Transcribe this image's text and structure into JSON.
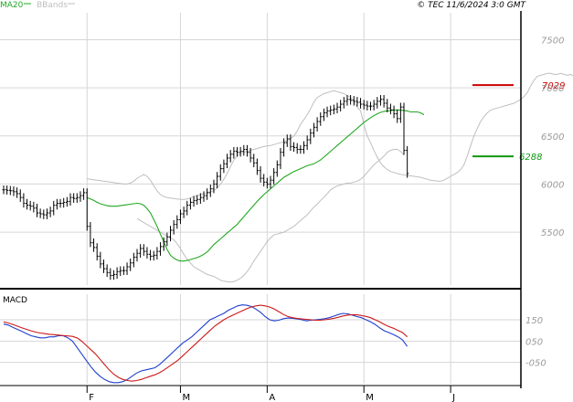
{
  "legend": {
    "ma": "MA20",
    "bb": "BBands"
  },
  "copyright": "© TEC 11/6/2024 3:0 GMT",
  "colors": {
    "price": "#000000",
    "ma": "#22a822",
    "bands": "#bfbfbf",
    "grid": "#d6d6d6",
    "resistance": "#cc0000",
    "support": "#119911",
    "macd": "#1f3fd0",
    "signal": "#cc1a1a",
    "axis_text": "#9a9a9a"
  },
  "chart_data": [
    {
      "type": "ohlc",
      "ylim": [
        4950,
        7780
      ],
      "y_ticks": [
        {
          "value": 7500,
          "label": "7500"
        },
        {
          "value": 7000,
          "label": "7000"
        },
        {
          "value": 6500,
          "label": "6500"
        },
        {
          "value": 6000,
          "label": "6000"
        },
        {
          "value": 5500,
          "label": "5500"
        }
      ],
      "month_markers": [
        {
          "index": 25,
          "label": "F"
        },
        {
          "index": 53,
          "label": "M"
        },
        {
          "index": 79,
          "label": "A"
        },
        {
          "index": 108,
          "label": "M"
        },
        {
          "index": 134,
          "label": "J"
        }
      ],
      "close": [
        5940,
        5935,
        5930,
        5920,
        5900,
        5860,
        5800,
        5780,
        5770,
        5750,
        5700,
        5690,
        5680,
        5700,
        5720,
        5780,
        5800,
        5800,
        5810,
        5820,
        5860,
        5850,
        5860,
        5880,
        5910,
        5560,
        5390,
        5340,
        5250,
        5170,
        5120,
        5080,
        5050,
        5060,
        5090,
        5100,
        5100,
        5140,
        5180,
        5240,
        5280,
        5330,
        5300,
        5270,
        5250,
        5260,
        5300,
        5350,
        5400,
        5450,
        5520,
        5580,
        5630,
        5690,
        5720,
        5780,
        5810,
        5830,
        5840,
        5860,
        5880,
        5910,
        5950,
        6000,
        6080,
        6160,
        6210,
        6270,
        6310,
        6340,
        6330,
        6340,
        6360,
        6330,
        6270,
        6220,
        6140,
        6060,
        6020,
        6000,
        6040,
        6120,
        6200,
        6330,
        6430,
        6470,
        6390,
        6380,
        6360,
        6360,
        6400,
        6460,
        6530,
        6590,
        6650,
        6700,
        6740,
        6760,
        6770,
        6780,
        6800,
        6830,
        6860,
        6880,
        6870,
        6860,
        6850,
        6830,
        6820,
        6810,
        6810,
        6830,
        6860,
        6880,
        6840,
        6790,
        6770,
        6730,
        6680,
        6800,
        6350,
        6110
      ],
      "ma20": [
        5860,
        5845,
        5830,
        5810,
        5795,
        5785,
        5775,
        5770,
        5770,
        5770,
        5775,
        5780,
        5785,
        5790,
        5795,
        5800,
        5795,
        5780,
        5745,
        5700,
        5630,
        5560,
        5480,
        5400,
        5320,
        5260,
        5230,
        5210,
        5200,
        5200,
        5205,
        5215,
        5225,
        5235,
        5250,
        5270,
        5295,
        5330,
        5370,
        5400,
        5430,
        5460,
        5490,
        5520,
        5550,
        5580,
        5620,
        5660,
        5700,
        5740,
        5780,
        5820,
        5855,
        5890,
        5920,
        5950,
        5980,
        6010,
        6040,
        6070,
        6090,
        6110,
        6130,
        6145,
        6160,
        6175,
        6190,
        6200,
        6210,
        6230,
        6250,
        6280,
        6310,
        6340,
        6370,
        6400,
        6430,
        6460,
        6490,
        6520,
        6550,
        6580,
        6610,
        6640,
        6665,
        6690,
        6710,
        6730,
        6745,
        6755,
        6760,
        6765,
        6770,
        6770,
        6768,
        6765,
        6760,
        6750,
        6750,
        6750,
        6740,
        6720
      ],
      "ma20_start_index": 25,
      "bb_upper": [
        6055,
        6050,
        6045,
        6040,
        6035,
        6030,
        6025,
        6020,
        6015,
        6010,
        6005,
        6000,
        6000,
        6010,
        6030,
        6060,
        6080,
        6100,
        6080,
        6040,
        5980,
        5930,
        5890,
        5870,
        5860,
        5855,
        5850,
        5845,
        5840,
        5840,
        5845,
        5855,
        5870,
        5880,
        5890,
        5900,
        5910,
        5920,
        5930,
        5960,
        6000,
        6050,
        6110,
        6180,
        6250,
        6290,
        6320,
        6330,
        6340,
        6350,
        6360,
        6370,
        6380,
        6390,
        6395,
        6400,
        6410,
        6420,
        6430,
        6440,
        6450,
        6470,
        6500,
        6550,
        6620,
        6670,
        6720,
        6780,
        6850,
        6900,
        6920,
        6940,
        6950,
        6960,
        6970,
        6960,
        6950,
        6940,
        6920,
        6900,
        6860,
        6800,
        6760,
        6620,
        6500,
        6430,
        6350,
        6280,
        6220,
        6180,
        6150,
        6130,
        6120,
        6110,
        6100,
        6095,
        6090,
        6085,
        6080,
        6075,
        6070,
        6060,
        6050,
        6040,
        6035,
        6030,
        6030,
        6040,
        6060,
        6080,
        6100,
        6120,
        6150,
        6200,
        6290,
        6400,
        6500,
        6580,
        6650,
        6700,
        6740,
        6770,
        6780,
        6790,
        6800,
        6810,
        6820,
        6830,
        6840,
        6860,
        6880,
        6910,
        6950,
        7020,
        7080,
        7120,
        7130,
        7140,
        7150,
        7150,
        7140,
        7140,
        7150,
        7140,
        7130,
        7140,
        7120,
        7100
      ],
      "bb_upper_start_index": 25,
      "bb_lower": [
        5640,
        5620,
        5600,
        5580,
        5560,
        5540,
        5520,
        5500,
        5480,
        5460,
        5440,
        5420,
        5380,
        5330,
        5270,
        5220,
        5180,
        5140,
        5120,
        5100,
        5080,
        5060,
        5050,
        5040,
        5020,
        5000,
        4990,
        4985,
        4980,
        4985,
        5000,
        5020,
        5050,
        5090,
        5140,
        5200,
        5250,
        5300,
        5350,
        5400,
        5440,
        5470,
        5480,
        5490,
        5500,
        5520,
        5540,
        5560,
        5590,
        5620,
        5650,
        5680,
        5720,
        5760,
        5790,
        5830,
        5860,
        5900,
        5940,
        5960,
        5980,
        5990,
        6000,
        6010,
        6010,
        6020,
        6030,
        6050,
        6080,
        6120,
        6160,
        6200,
        6230,
        6260,
        6290,
        6330,
        6350,
        6360,
        6360,
        6340,
        6300
      ],
      "bb_lower_start_index": 40,
      "levels": [
        {
          "name": "resistance",
          "value": 7029,
          "label": "7029"
        },
        {
          "name": "support",
          "value": 6288,
          "label": "6288"
        }
      ]
    },
    {
      "type": "line",
      "title": "MACD",
      "ylim": [
        -150,
        270
      ],
      "y_ticks": [
        {
          "value": 150,
          "label": "150"
        },
        {
          "value": 50,
          "label": "050"
        },
        {
          "value": -50,
          "label": "-050"
        }
      ],
      "series": [
        {
          "name": "MACD",
          "values": [
            130,
            125,
            115,
            105,
            95,
            85,
            75,
            70,
            65,
            65,
            70,
            70,
            75,
            75,
            65,
            50,
            20,
            -10,
            -40,
            -70,
            -95,
            -115,
            -130,
            -140,
            -145,
            -145,
            -140,
            -130,
            -115,
            -100,
            -90,
            -85,
            -80,
            -75,
            -60,
            -40,
            -20,
            0,
            20,
            40,
            55,
            70,
            90,
            110,
            130,
            150,
            160,
            170,
            180,
            195,
            205,
            215,
            220,
            218,
            212,
            200,
            185,
            165,
            150,
            145,
            148,
            155,
            158,
            157,
            154,
            150,
            145,
            148,
            150,
            152,
            155,
            160,
            167,
            175,
            180,
            178,
            172,
            165,
            160,
            150,
            140,
            128,
            112,
            98,
            90,
            80,
            70,
            55,
            25
          ]
        },
        {
          "name": "Signal",
          "values": [
            140,
            135,
            128,
            120,
            112,
            105,
            98,
            92,
            88,
            85,
            82,
            80,
            78,
            76,
            74,
            72,
            65,
            50,
            30,
            10,
            -10,
            -35,
            -60,
            -85,
            -105,
            -120,
            -130,
            -135,
            -138,
            -135,
            -130,
            -122,
            -115,
            -108,
            -98,
            -85,
            -70,
            -55,
            -40,
            -20,
            0,
            20,
            40,
            60,
            80,
            100,
            120,
            135,
            150,
            162,
            172,
            182,
            192,
            202,
            210,
            215,
            218,
            215,
            210,
            200,
            188,
            175,
            165,
            160,
            156,
            154,
            152,
            150,
            148,
            148,
            150,
            153,
            157,
            162,
            168,
            172,
            174,
            173,
            170,
            166,
            160,
            150,
            140,
            128,
            118,
            110,
            100,
            90,
            70
          ]
        }
      ]
    }
  ]
}
